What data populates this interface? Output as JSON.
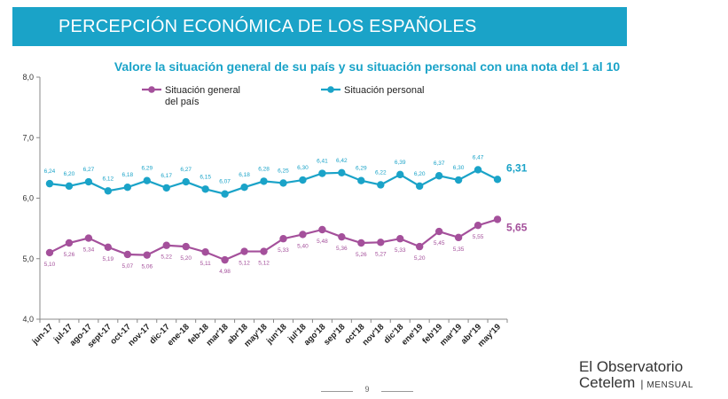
{
  "header": {
    "title": "PERCEPCIÓN ECONÓMICA DE LOS ESPAÑOLES"
  },
  "chart_data": {
    "type": "line",
    "title": "Valore la situación general de su país y su situación personal con una nota del 1 al 10",
    "xlabel": "",
    "ylabel": "",
    "ylim": [
      4,
      8
    ],
    "yticks": [
      "4,0",
      "5,0",
      "6,0",
      "7,0",
      "8,0"
    ],
    "grid": false,
    "legend_position": "top",
    "categories": [
      "jun-17",
      "jul-17",
      "ago-17",
      "sept-17",
      "oct-17",
      "nov-17",
      "dic-17",
      "ene-18",
      "feb-18",
      "mar'18",
      "abr'18",
      "may'18",
      "jun'18",
      "jul'18",
      "ago'18",
      "sep'18",
      "oct'18",
      "nov'18",
      "dic'18",
      "ene'19",
      "feb'19",
      "mar'19",
      "abr'19",
      "may'19"
    ],
    "series": [
      {
        "name": "Situación general del país",
        "legend_lines": [
          "Situación general",
          "del país"
        ],
        "color": "#a4509b",
        "values": [
          5.1,
          5.26,
          5.34,
          5.19,
          5.07,
          5.06,
          5.22,
          5.2,
          5.11,
          4.98,
          5.12,
          5.12,
          5.33,
          5.4,
          5.48,
          5.36,
          5.26,
          5.27,
          5.33,
          5.2,
          5.45,
          5.35,
          5.55,
          5.65
        ],
        "labels": [
          "5,10",
          "5,26",
          "5,34",
          "5,19",
          "5,07",
          "5,06",
          "5,22",
          "5,20",
          "5,11",
          "4,98",
          "5,12",
          "5,12",
          "5,33",
          "5,40",
          "5,48",
          "5,36",
          "5,26",
          "5,27",
          "5,33",
          "5,20",
          "5,45",
          "5,35",
          "5,55",
          "5,65"
        ],
        "label_side": "below"
      },
      {
        "name": "Situación personal",
        "legend_lines": [
          "Situación personal"
        ],
        "color": "#1aa3c8",
        "values": [
          6.24,
          6.2,
          6.27,
          6.12,
          6.18,
          6.29,
          6.17,
          6.27,
          6.15,
          6.07,
          6.18,
          6.28,
          6.25,
          6.3,
          6.41,
          6.42,
          6.29,
          6.22,
          6.39,
          6.2,
          6.37,
          6.3,
          6.47,
          6.31
        ],
        "labels": [
          "6,24",
          "6,20",
          "6,27",
          "6,12",
          "6,18",
          "6,29",
          "6,17",
          "6,27",
          "6,15",
          "6,07",
          "6,18",
          "6,28",
          "6,25",
          "6,30",
          "6,41",
          "6,42",
          "6,29",
          "6,22",
          "6,39",
          "6,20",
          "6,37",
          "6,30",
          "6,47",
          "6,31"
        ],
        "label_side": "above"
      }
    ]
  },
  "brand": {
    "line1": "El Observatorio",
    "line2": "Cetelem",
    "separator": "|",
    "sub": "MENSUAL"
  },
  "footer": {
    "page_number": "9"
  }
}
